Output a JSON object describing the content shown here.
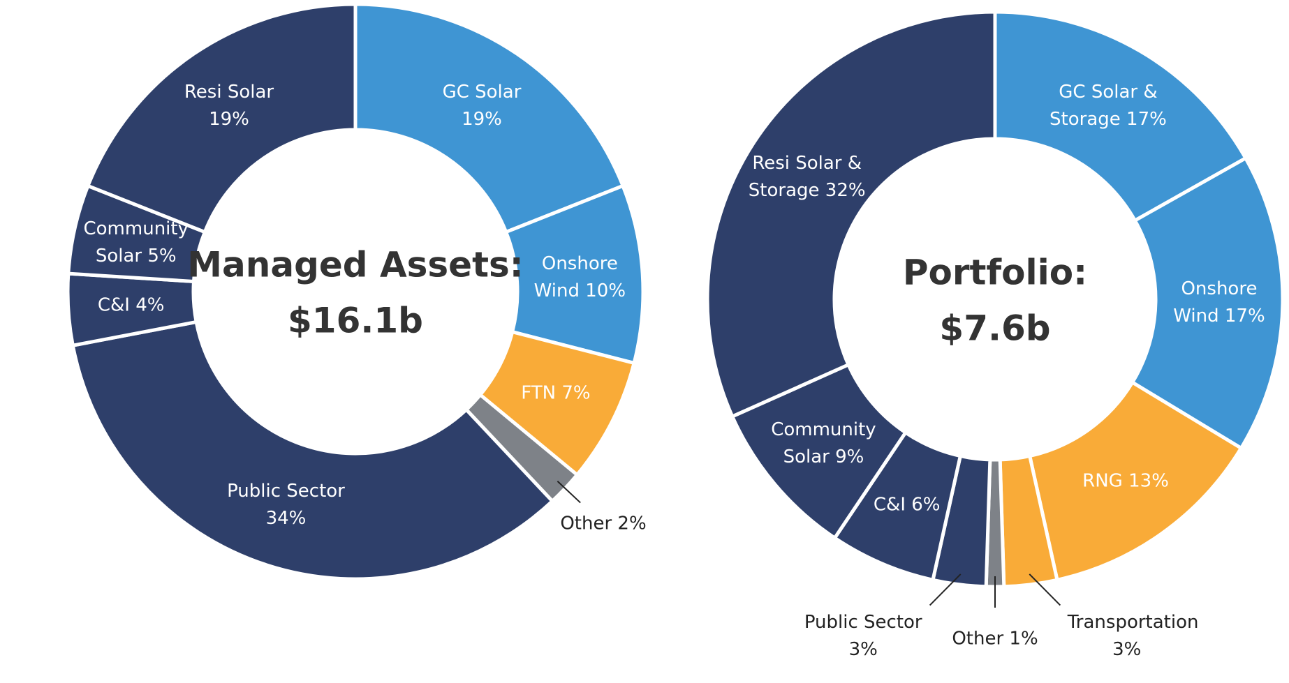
{
  "chart_data": [
    {
      "type": "pie",
      "title": "Managed Assets:",
      "subtitle": "$16.1b",
      "categories": [
        "GC Solar",
        "Onshore Wind",
        "FTN",
        "Other",
        "Public Sector",
        "C&I",
        "Community Solar",
        "Resi Solar"
      ],
      "values": [
        19,
        10,
        7,
        2,
        34,
        4,
        5,
        19
      ],
      "value_labels": [
        "19%",
        "10%",
        "7%",
        "2%",
        "34%",
        "4%",
        "5%",
        "19%"
      ],
      "colors": [
        "#3f95d3",
        "#3f95d3",
        "#f9ab38",
        "#7e8288",
        "#2e3f6a",
        "#2e3f6a",
        "#2e3f6a",
        "#2e3f6a"
      ]
    },
    {
      "type": "pie",
      "title": "Portfolio:",
      "subtitle": "$7.6b",
      "categories": [
        "GC Solar & Storage",
        "Onshore Wind",
        "RNG",
        "Transportation",
        "Other",
        "Public Sector",
        "C&I",
        "Community Solar",
        "Resi Solar & Storage"
      ],
      "values": [
        17,
        17,
        13,
        3,
        1,
        3,
        6,
        9,
        32
      ],
      "value_labels": [
        "17%",
        "17%",
        "13%",
        "3%",
        "1%",
        "3%",
        "6%",
        "9%",
        "32%"
      ],
      "colors": [
        "#3f95d3",
        "#3f95d3",
        "#f9ab38",
        "#f9ab38",
        "#7e8288",
        "#2e3f6a",
        "#2e3f6a",
        "#2e3f6a",
        "#2e3f6a"
      ]
    }
  ]
}
